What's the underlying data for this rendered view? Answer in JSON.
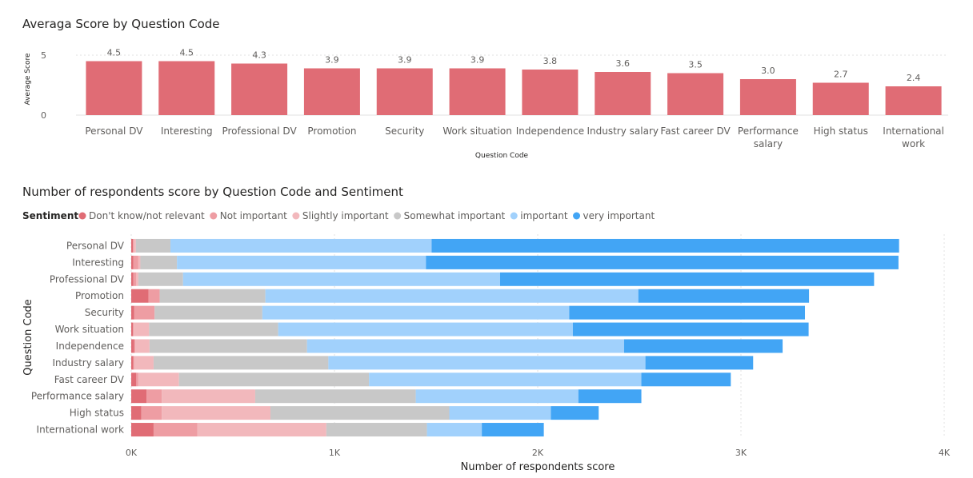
{
  "chart_data": [
    {
      "type": "bar",
      "title": "Averaga Score by Question Code",
      "xlabel": "Question Code",
      "ylabel": "Average Score",
      "y_ticks": [
        "0",
        "5"
      ],
      "ylim": [
        0,
        5
      ],
      "grid": true,
      "bar_color": "#E06C75",
      "categories": [
        "Personal DV",
        "Interesting",
        "Professional DV",
        "Promotion",
        "Security",
        "Work situation",
        "Independence",
        "Industry salary",
        "Fast career DV",
        "Performance salary",
        "High status",
        "International work"
      ],
      "category_lines": [
        [
          "Personal DV"
        ],
        [
          "Interesting"
        ],
        [
          "Professional DV"
        ],
        [
          "Promotion"
        ],
        [
          "Security"
        ],
        [
          "Work situation"
        ],
        [
          "Independence"
        ],
        [
          "Industry salary"
        ],
        [
          "Fast career DV"
        ],
        [
          "Performance",
          "salary"
        ],
        [
          "High status"
        ],
        [
          "International",
          "work"
        ]
      ],
      "values": [
        4.5,
        4.5,
        4.3,
        3.9,
        3.9,
        3.9,
        3.8,
        3.6,
        3.5,
        3.0,
        2.7,
        2.4
      ],
      "data_labels": [
        "4.5",
        "4.5",
        "4.3",
        "3.9",
        "3.9",
        "3.9",
        "3.8",
        "3.6",
        "3.5",
        "3.0",
        "2.7",
        "2.4"
      ]
    },
    {
      "type": "bar",
      "orientation": "horizontal",
      "stacked": true,
      "title": "Number of respondents score by Question Code and Sentiment",
      "xlabel": "Number of respondents score",
      "ylabel": "Question Code",
      "xlim": [
        0,
        4000
      ],
      "x_ticks": [
        {
          "value": 0,
          "label": "0K"
        },
        {
          "value": 1000,
          "label": "1K"
        },
        {
          "value": 2000,
          "label": "2K"
        },
        {
          "value": 3000,
          "label": "3K"
        },
        {
          "value": 4000,
          "label": "4K"
        }
      ],
      "grid": true,
      "legend": {
        "title": "Sentiment",
        "position": "top-left"
      },
      "categories": [
        "Personal DV",
        "Interesting",
        "Professional DV",
        "Promotion",
        "Security",
        "Work situation",
        "Independence",
        "Industry salary",
        "Fast career DV",
        "Performance salary",
        "High status",
        "International work"
      ],
      "series": [
        {
          "name": "Don't know/not relevant",
          "color": "#E06C75",
          "values": [
            8,
            10,
            10,
            85,
            15,
            8,
            15,
            10,
            25,
            75,
            50,
            110
          ]
        },
        {
          "name": "Not important",
          "color": "#EE9DA3",
          "values": [
            5,
            25,
            15,
            55,
            100,
            5,
            5,
            5,
            10,
            75,
            100,
            215
          ]
        },
        {
          "name": "Slightly important",
          "color": "#F2B8BC",
          "values": [
            10,
            10,
            10,
            0,
            0,
            75,
            70,
            95,
            200,
            460,
            535,
            635
          ]
        },
        {
          "name": "Somewhat important",
          "color": "#C8C8C8",
          "values": [
            170,
            180,
            220,
            520,
            530,
            635,
            775,
            860,
            935,
            790,
            880,
            495
          ]
        },
        {
          "name": "important",
          "color": "#A1D1FC",
          "values": [
            1285,
            1225,
            1560,
            1835,
            1510,
            1450,
            1560,
            1560,
            1340,
            800,
            500,
            270
          ]
        },
        {
          "name": "very important",
          "color": "#42A5F5",
          "values": [
            2300,
            2325,
            1840,
            840,
            1160,
            1160,
            780,
            530,
            440,
            310,
            235,
            305
          ]
        }
      ]
    }
  ]
}
